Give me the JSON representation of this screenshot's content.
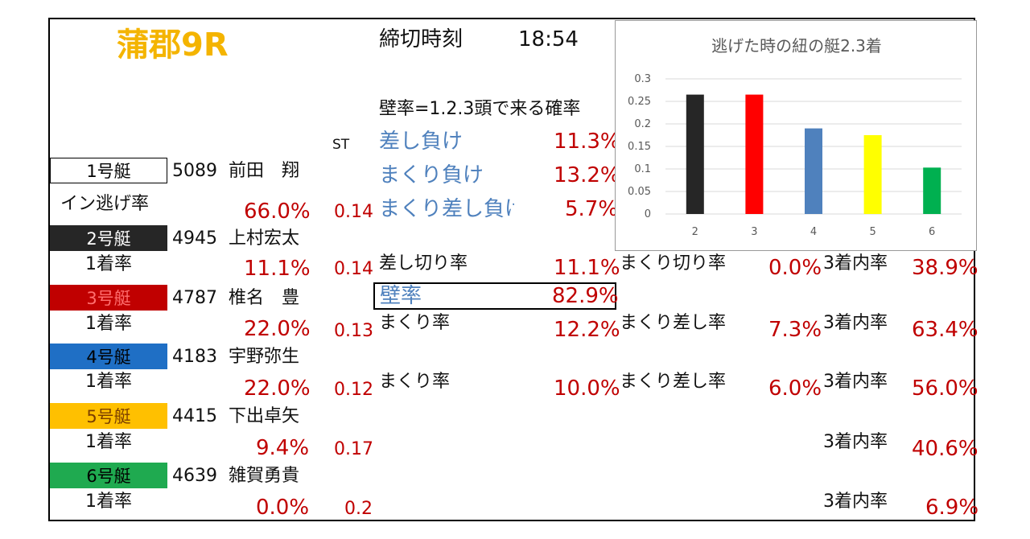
{
  "race": {
    "venue": "蒲郡9R",
    "deadline_label": "締切時刻",
    "deadline_time": "18:54"
  },
  "st_header": "ST",
  "wall": {
    "header": "壁率=1.2.3頭で来る確率",
    "rows": [
      {
        "label": "差し負け",
        "value": "11.3%"
      },
      {
        "label": "まくり負け",
        "value": "13.2%"
      },
      {
        "label": "まくり差し負け",
        "value": "5.7%"
      }
    ],
    "wall_label": "壁率",
    "wall_value": "82.9%"
  },
  "boats": [
    {
      "badge": "1号艇",
      "reg": "5089",
      "name": "前田　翔",
      "rate_label": "イン逃げ率",
      "rate": "66.0%",
      "st": "0.14",
      "color": "#ffffff"
    },
    {
      "badge": "2号艇",
      "reg": "4945",
      "name": "上村宏太",
      "rate_label": "1着率",
      "rate": "11.1%",
      "st": "0.14",
      "color": "#262626",
      "col1_label": "差し切り率",
      "col1_value": "11.1%",
      "col2_label": "まくり切り率",
      "col2_value": "0.0%",
      "col3_label": "3着内率",
      "col3_value": "38.9%"
    },
    {
      "badge": "3号艇",
      "reg": "4787",
      "name": "椎名　豊",
      "rate_label": "1着率",
      "rate": "22.0%",
      "st": "0.13",
      "color": "#c00000",
      "col1_label": "まくり率",
      "col1_value": "12.2%",
      "col2_label": "まくり差し率",
      "col2_value": "7.3%",
      "col3_label": "3着内率",
      "col3_value": "63.4%"
    },
    {
      "badge": "4号艇",
      "reg": "4183",
      "name": "宇野弥生",
      "rate_label": "1着率",
      "rate": "22.0%",
      "st": "0.12",
      "color": "#1f6fc5",
      "col1_label": "まくり率",
      "col1_value": "10.0%",
      "col2_label": "まくり差し率",
      "col2_value": "6.0%",
      "col3_label": "3着内率",
      "col3_value": "56.0%"
    },
    {
      "badge": "5号艇",
      "reg": "4415",
      "name": "下出卓矢",
      "rate_label": "1着率",
      "rate": "9.4%",
      "st": "0.17",
      "color": "#ffc000",
      "col3_label": "3着内率",
      "col3_value": "40.6%"
    },
    {
      "badge": "6号艇",
      "reg": "4639",
      "name": "雑賀勇貴",
      "rate_label": "1着率",
      "rate": "0.0%",
      "st": "0.2",
      "color": "#1faa50",
      "col3_label": "3着内率",
      "col3_value": "6.9%"
    }
  ],
  "chart_data": {
    "type": "bar",
    "title": "逃げた時の紐の艇2.3着",
    "categories": [
      "2",
      "3",
      "4",
      "5",
      "6"
    ],
    "values": [
      0.265,
      0.265,
      0.19,
      0.175,
      0.103
    ],
    "colors": [
      "#262626",
      "#ff0000",
      "#4f81bd",
      "#ffff00",
      "#00b050"
    ],
    "ylim": [
      0,
      0.3
    ],
    "yticks": [
      "0",
      "0.05",
      "0.1",
      "0.15",
      "0.2",
      "0.25",
      "0.3"
    ],
    "grid": true,
    "legend": "none"
  }
}
